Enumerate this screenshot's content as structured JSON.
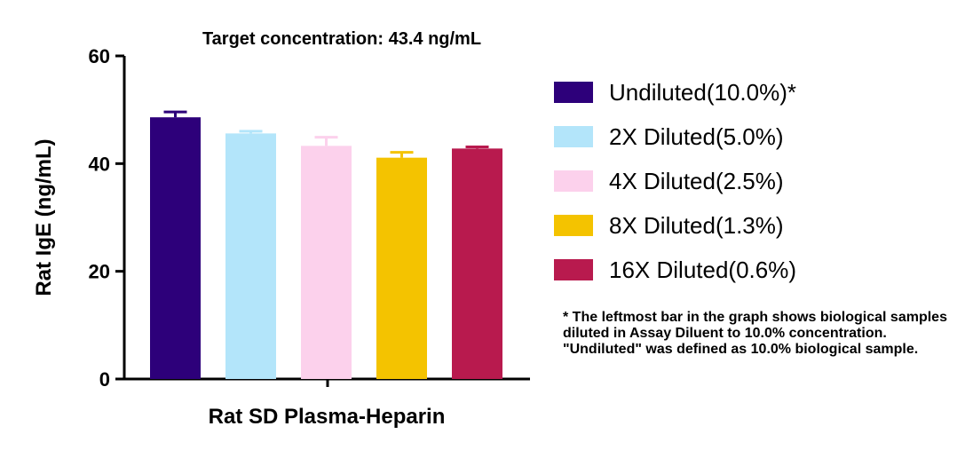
{
  "chart_data": {
    "type": "bar",
    "title": "Target concentration: 43.4 ng/mL",
    "xlabel": "Rat SD Plasma-Heparin",
    "ylabel": "Rat IgE (ng/mL)",
    "ylim": [
      0,
      60
    ],
    "yticks": [
      "0",
      "20",
      "40",
      "60"
    ],
    "grid": false,
    "legend_position": "right",
    "series": [
      {
        "name": "Undiluted(10.0%)*",
        "value": 48.6,
        "error": 1.0,
        "color": "#2d007a"
      },
      {
        "name": "2X Diluted(5.0%)",
        "value": 45.6,
        "error": 0.4,
        "color": "#b3e5fa"
      },
      {
        "name": "4X Diluted(2.5%)",
        "value": 43.3,
        "error": 1.6,
        "color": "#fcd1ec"
      },
      {
        "name": "8X Diluted(1.3%)",
        "value": 41.1,
        "error": 1.0,
        "color": "#f4c300"
      },
      {
        "name": "16X Diluted(0.6%)",
        "value": 42.8,
        "error": 0.3,
        "color": "#b81a4e"
      }
    ],
    "footnote": "* The leftmost bar in the graph shows biological samples diluted in Assay Diluent to 10.0% concentration. \"Undiluted\" was defined as 10.0% biological sample."
  }
}
